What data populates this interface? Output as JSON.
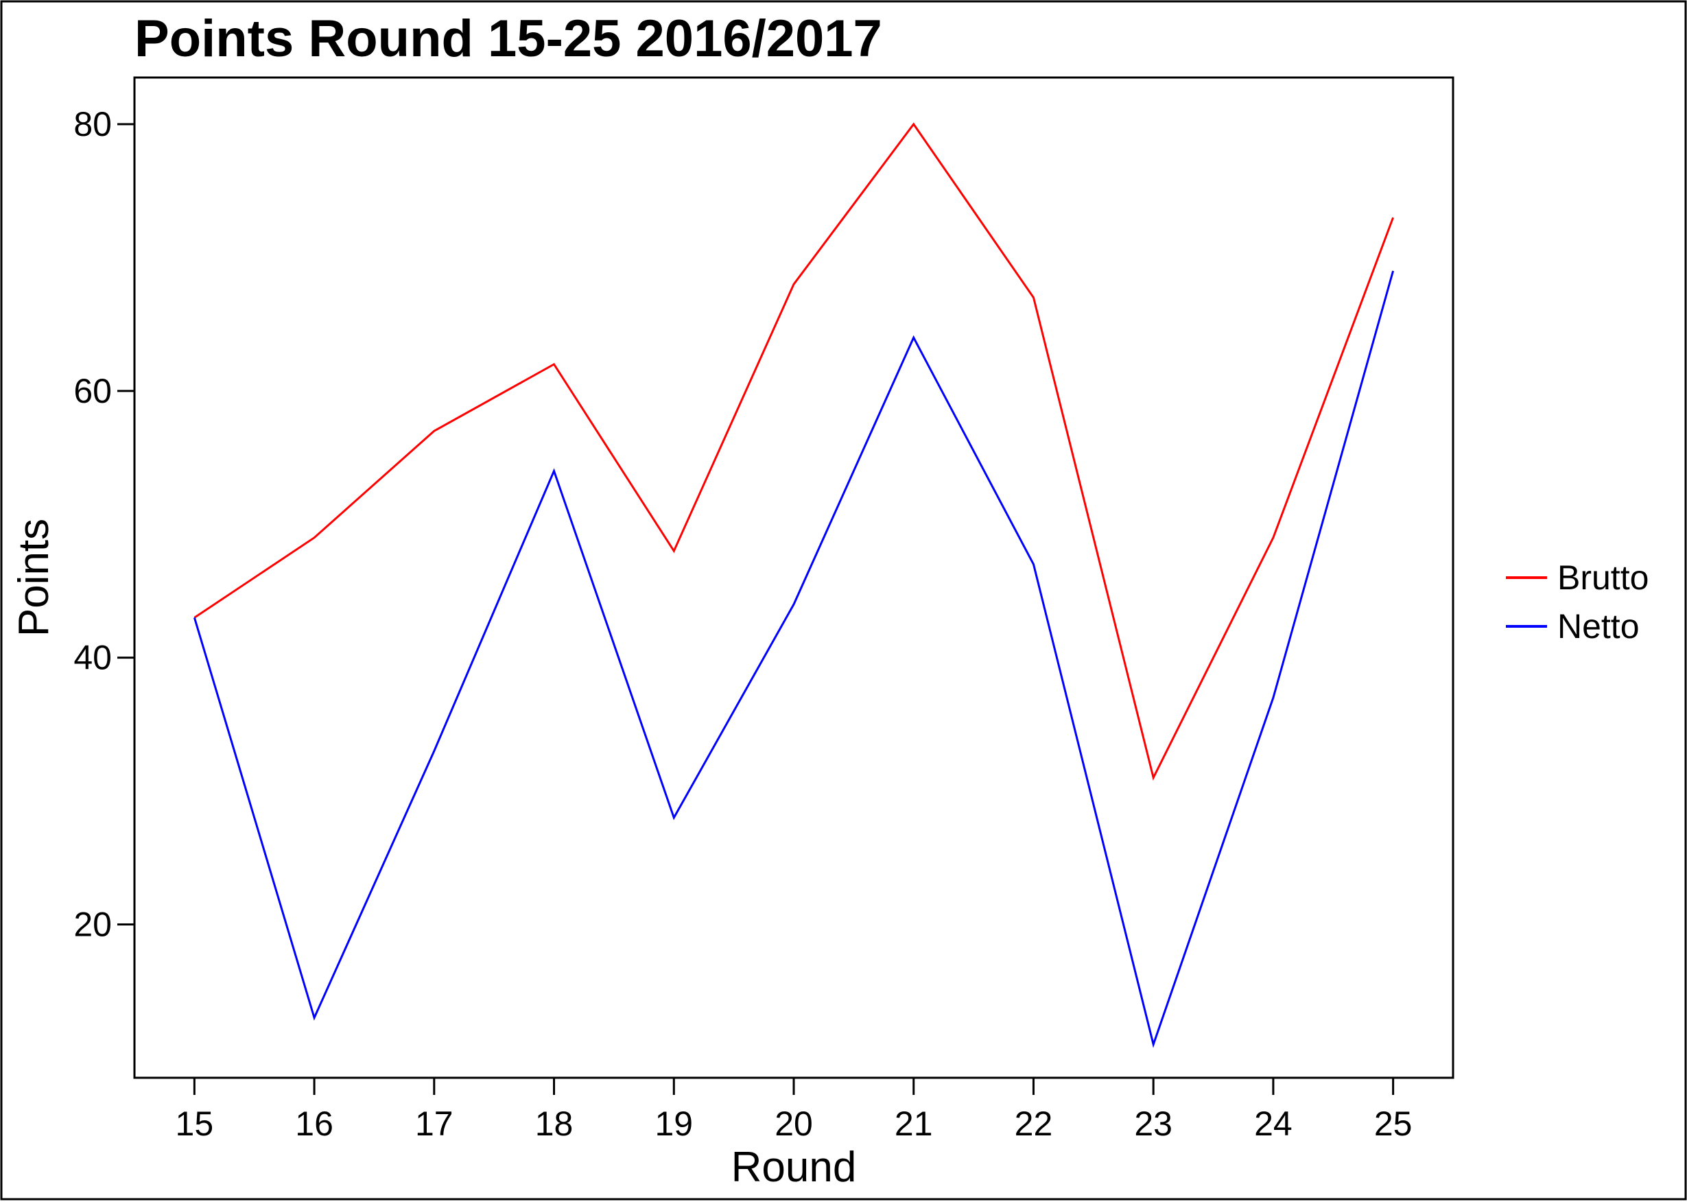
{
  "chart_data": {
    "type": "line",
    "title": "Points Round 15-25 2016/2017",
    "xlabel": "Round",
    "ylabel": "Points",
    "x": [
      15,
      16,
      17,
      18,
      19,
      20,
      21,
      22,
      23,
      24,
      25
    ],
    "x_tick_labels": [
      "15",
      "16",
      "17",
      "18",
      "19",
      "20",
      "21",
      "22",
      "23",
      "24",
      "25"
    ],
    "y_ticks": [
      20,
      40,
      60,
      80
    ],
    "y_tick_labels": [
      "20",
      "40",
      "60",
      "80"
    ],
    "xlim": [
      14.5,
      25.5
    ],
    "ylim": [
      8.5,
      83.5
    ],
    "grid": false,
    "legend_position": "right",
    "series": [
      {
        "name": "Brutto",
        "color": "#ff0000",
        "values": [
          43,
          49,
          57,
          62,
          48,
          68,
          80,
          67,
          31,
          49,
          73
        ]
      },
      {
        "name": "Netto",
        "color": "#0000ff",
        "values": [
          43,
          13,
          33,
          54,
          28,
          44,
          64,
          47,
          11,
          37,
          69
        ]
      }
    ]
  }
}
